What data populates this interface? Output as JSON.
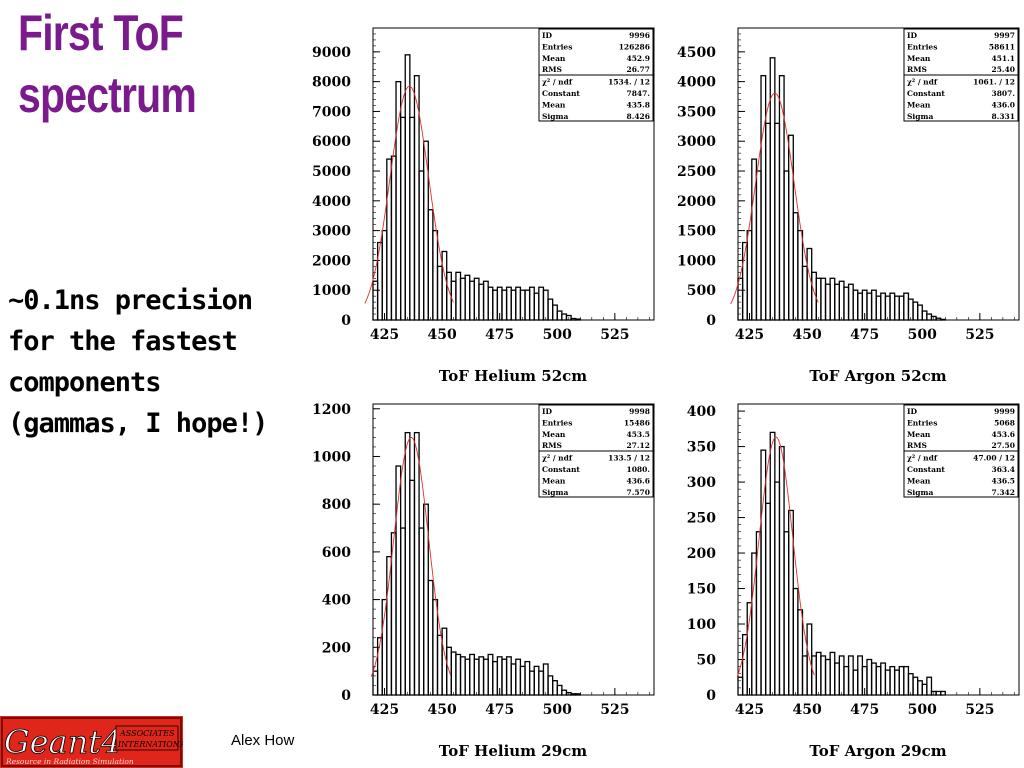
{
  "slide": {
    "title_lines": [
      "First ToF",
      "spectrum"
    ],
    "note_lines": [
      "~0.1ns precision",
      "for the fastest",
      "components",
      "(gammas, I hope!)"
    ],
    "author": "Alex How",
    "logo": {
      "text": "Geant4",
      "tag_top": "ASSOCIATES",
      "tag_bottom": "INTERNATIONAL",
      "motto": "Resource in Radiation Simulation",
      "color": "#e0261b"
    }
  },
  "chart_data": [
    {
      "type": "bar",
      "xlabel": "ToF Helium 52cm",
      "xlim": [
        420,
        542
      ],
      "ylim": [
        0,
        9800
      ],
      "yticks": [
        0,
        1000,
        2000,
        3000,
        4000,
        5000,
        6000,
        7000,
        8000,
        9000
      ],
      "xticks": [
        425,
        450,
        475,
        500,
        525
      ],
      "bin_start": 420,
      "bin_width": 2,
      "values": [
        1300,
        2600,
        3000,
        5400,
        5500,
        8000,
        6800,
        8900,
        6800,
        8200,
        5000,
        6000,
        3700,
        3000,
        1800,
        2300,
        1600,
        1300,
        1600,
        1400,
        1500,
        1300,
        1400,
        1200,
        1300,
        1100,
        1000,
        1100,
        1000,
        1100,
        1000,
        1100,
        1000,
        1000,
        1100,
        900,
        1100,
        1000,
        700,
        500,
        300,
        200,
        150,
        50,
        30
      ],
      "fit": {
        "constant": 7847,
        "mean": 435.8,
        "sigma": 8.426
      },
      "stats": [
        [
          "ID",
          "9996"
        ],
        [
          "Entries",
          "126286"
        ],
        [
          "Mean",
          "452.9"
        ],
        [
          "RMS",
          "26.77"
        ],
        [
          "χ² / ndf",
          "1534.  /   12"
        ],
        [
          "Constant",
          "7847."
        ],
        [
          "Mean",
          "435.8"
        ],
        [
          "Sigma",
          "8.426"
        ]
      ]
    },
    {
      "type": "bar",
      "xlabel": "ToF Argon 52cm",
      "xlim": [
        420,
        542
      ],
      "ylim": [
        0,
        4900
      ],
      "yticks": [
        0,
        500,
        1000,
        1500,
        2000,
        2500,
        3000,
        3500,
        4000,
        4500
      ],
      "xticks": [
        425,
        450,
        475,
        500,
        525
      ],
      "bin_start": 420,
      "bin_width": 2,
      "values": [
        700,
        1300,
        1500,
        2700,
        2500,
        4100,
        3300,
        4400,
        3300,
        4100,
        2500,
        3100,
        1800,
        1500,
        900,
        1200,
        800,
        700,
        700,
        600,
        700,
        600,
        650,
        550,
        600,
        500,
        450,
        500,
        450,
        500,
        400,
        450,
        400,
        450,
        400,
        400,
        450,
        350,
        300,
        250,
        150,
        100,
        60,
        30,
        10
      ],
      "fit": {
        "constant": 3807,
        "mean": 436.0,
        "sigma": 8.331
      },
      "stats": [
        [
          "ID",
          "9997"
        ],
        [
          "Entries",
          "58611"
        ],
        [
          "Mean",
          "451.1"
        ],
        [
          "RMS",
          "25.40"
        ],
        [
          "χ² / ndf",
          "1061.  /   12"
        ],
        [
          "Constant",
          "3807."
        ],
        [
          "Mean",
          "436.0"
        ],
        [
          "Sigma",
          "8.331"
        ]
      ]
    },
    {
      "type": "bar",
      "xlabel": "ToF Helium 29cm",
      "xlim": [
        420,
        542
      ],
      "ylim": [
        0,
        1220
      ],
      "yticks": [
        0,
        200,
        400,
        600,
        800,
        1000,
        1200
      ],
      "xticks": [
        425,
        450,
        475,
        500,
        525
      ],
      "bin_start": 420,
      "bin_width": 2,
      "values": [
        100,
        240,
        400,
        580,
        680,
        960,
        700,
        1100,
        900,
        1100,
        700,
        800,
        480,
        400,
        250,
        280,
        200,
        180,
        170,
        160,
        150,
        170,
        150,
        160,
        150,
        170,
        140,
        160,
        150,
        160,
        130,
        150,
        120,
        140,
        100,
        120,
        100,
        130,
        80,
        60,
        40,
        20,
        10,
        5,
        5
      ],
      "fit": {
        "constant": 1080,
        "mean": 436.6,
        "sigma": 7.57
      },
      "stats": [
        [
          "ID",
          "9998"
        ],
        [
          "Entries",
          "15486"
        ],
        [
          "Mean",
          "453.5"
        ],
        [
          "RMS",
          "27.12"
        ],
        [
          "χ² / ndf",
          "133.5  /   12"
        ],
        [
          "Constant",
          "1080."
        ],
        [
          "Mean",
          "436.6"
        ],
        [
          "Sigma",
          "7.570"
        ]
      ]
    },
    {
      "type": "bar",
      "xlabel": "ToF Argon 29cm",
      "xlim": [
        420,
        542
      ],
      "ylim": [
        0,
        410
      ],
      "yticks": [
        0,
        50,
        100,
        150,
        200,
        250,
        300,
        350,
        400
      ],
      "xticks": [
        425,
        450,
        475,
        500,
        525
      ],
      "bin_start": 420,
      "bin_width": 2,
      "values": [
        25,
        85,
        130,
        200,
        230,
        345,
        270,
        370,
        300,
        350,
        230,
        260,
        150,
        120,
        55,
        100,
        55,
        60,
        55,
        50,
        60,
        45,
        55,
        40,
        55,
        35,
        55,
        40,
        50,
        45,
        40,
        45,
        35,
        40,
        35,
        40,
        40,
        30,
        25,
        20,
        15,
        25,
        5,
        5,
        5
      ],
      "fit": {
        "constant": 363.4,
        "mean": 436.5,
        "sigma": 7.342
      },
      "stats": [
        [
          "ID",
          "9999"
        ],
        [
          "Entries",
          "5068"
        ],
        [
          "Mean",
          "453.6"
        ],
        [
          "RMS",
          "27.50"
        ],
        [
          "χ² / ndf",
          "47.00  /   12"
        ],
        [
          "Constant",
          "363.4"
        ],
        [
          "Mean",
          "436.5"
        ],
        [
          "Sigma",
          "7.342"
        ]
      ]
    }
  ]
}
